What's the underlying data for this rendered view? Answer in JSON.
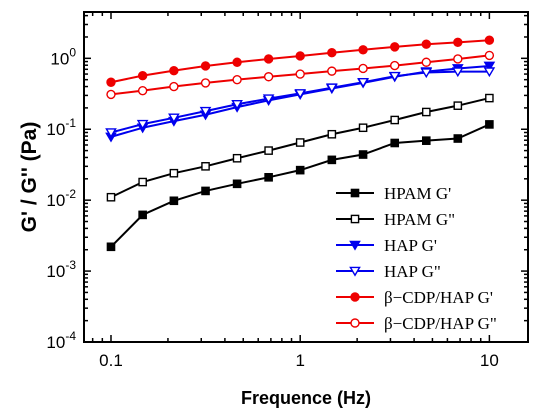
{
  "chart_data": {
    "type": "line",
    "xlabel": "Frequence (Hz)",
    "ylabel": "G' / G'' (Pa)",
    "xscale": "log",
    "yscale": "log",
    "xlim": [
      0.072,
      16
    ],
    "ylim": [
      0.0001,
      4.5
    ],
    "xticks": [
      {
        "value": 0.1,
        "label": "0.1"
      },
      {
        "value": 1,
        "label": "1"
      },
      {
        "value": 10,
        "label": "10"
      }
    ],
    "yticks": [
      {
        "value": 0.0001,
        "base": "10",
        "exp": "-4"
      },
      {
        "value": 0.001,
        "base": "10",
        "exp": "-3"
      },
      {
        "value": 0.01,
        "base": "10",
        "exp": "-2"
      },
      {
        "value": 0.1,
        "base": "10",
        "exp": "-1"
      },
      {
        "value": 1,
        "base": "10",
        "exp": "0"
      }
    ],
    "grid": false,
    "legend_position": "bottom-right",
    "x": [
      0.1,
      0.147,
      0.215,
      0.316,
      0.464,
      0.681,
      1,
      1.47,
      2.15,
      3.16,
      4.64,
      6.81,
      10
    ],
    "series": [
      {
        "name": "HPAM G'",
        "color": "#000000",
        "marker": "square",
        "filled": true,
        "values": [
          0.0022,
          0.0062,
          0.0098,
          0.0135,
          0.017,
          0.021,
          0.0265,
          0.037,
          0.044,
          0.064,
          0.069,
          0.074,
          0.117
        ]
      },
      {
        "name": "HPAM G\"",
        "color": "#000000",
        "marker": "square",
        "filled": false,
        "values": [
          0.011,
          0.018,
          0.024,
          0.03,
          0.039,
          0.05,
          0.065,
          0.085,
          0.105,
          0.135,
          0.175,
          0.215,
          0.275
        ]
      },
      {
        "name": "HAP G'",
        "color": "#0000ee",
        "marker": "triangle-down",
        "filled": true,
        "values": [
          0.078,
          0.105,
          0.13,
          0.16,
          0.205,
          0.255,
          0.31,
          0.375,
          0.45,
          0.55,
          0.65,
          0.72,
          0.78
        ]
      },
      {
        "name": "HAP G\"",
        "color": "#0000ee",
        "marker": "triangle-down",
        "filled": false,
        "values": [
          0.09,
          0.118,
          0.145,
          0.18,
          0.225,
          0.27,
          0.32,
          0.385,
          0.46,
          0.56,
          0.63,
          0.65,
          0.65
        ]
      },
      {
        "name": "β−CDP/HAP G'",
        "color": "#ee0000",
        "marker": "circle",
        "filled": true,
        "values": [
          0.46,
          0.57,
          0.67,
          0.78,
          0.88,
          0.98,
          1.08,
          1.2,
          1.32,
          1.45,
          1.58,
          1.68,
          1.8
        ]
      },
      {
        "name": "β−CDP/HAP G\"",
        "color": "#ee0000",
        "marker": "circle",
        "filled": false,
        "values": [
          0.31,
          0.35,
          0.4,
          0.45,
          0.5,
          0.55,
          0.6,
          0.66,
          0.72,
          0.79,
          0.88,
          0.98,
          1.1
        ]
      }
    ]
  }
}
